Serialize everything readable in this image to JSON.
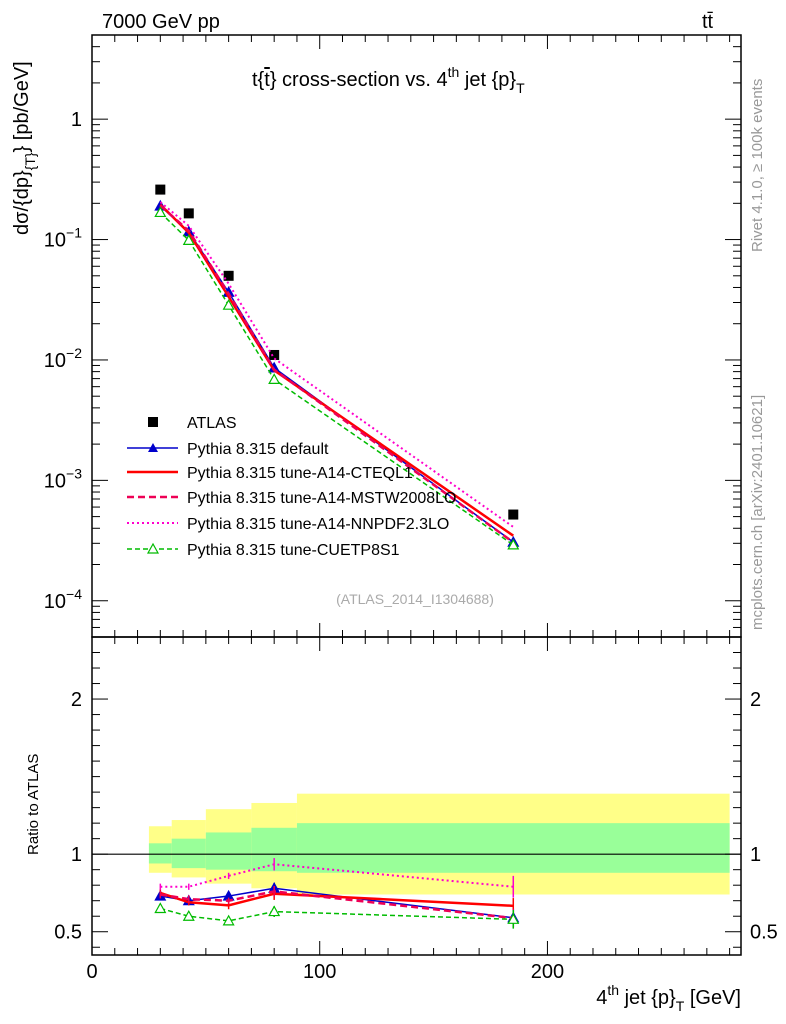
{
  "header": {
    "left": "7000 GeV pp",
    "right_main": "tt",
    "right_bar": "̄"
  },
  "main_title": {
    "pre": "t{",
    "tbar": "t",
    "mid": "} cross-section vs. 4",
    "sup": "th",
    "post": " jet {p}",
    "sub": "T"
  },
  "side_labels": {
    "rivet": "Rivet 4.1.0, ≥ 100k events",
    "mcplots": "mcplots.cern.ch [arXiv:2401.10621]"
  },
  "y_label_top": {
    "main": "dσ/{dp}",
    "sub": "{T}",
    "post": "} [pb/GeV]"
  },
  "y_label_bottom": "Ratio to ATLAS",
  "x_label": {
    "pre": "4",
    "sup": "th",
    "mid": " jet {p}",
    "sub": "T",
    "post": " [GeV]"
  },
  "watermark": "(ATLAS_2014_I1304688)",
  "legend": {
    "atlas": "ATLAS",
    "default": "Pythia 8.315 default",
    "cteq": "Pythia 8.315 tune-A14-CTEQL1",
    "mstw": "Pythia 8.315 tune-A14-MSTW2008LO",
    "nnpdf": "Pythia 8.315 tune-A14-NNPDF2.3LO",
    "cuetp": "Pythia 8.315 tune-CUETP8S1"
  },
  "colors": {
    "atlas": "#000000",
    "default": "#0000cc",
    "cteq": "#ff0000",
    "mstw": "#ee0055",
    "nnpdf": "#ff00cc",
    "cuetp": "#00bb00",
    "band_outer": "#ffff88",
    "band_inner": "#99ff99"
  },
  "chart_data": {
    "type": "line",
    "title": "t{t̄} cross-section vs. 4th jet {p}_T",
    "xlabel": "4th jet {p}_T [GeV]",
    "ylabel_top": "dσ/{dp}_{T}} [pb/GeV]",
    "ylabel_bottom": "Ratio to ATLAS",
    "xlim": [
      0,
      285
    ],
    "ylim_top": [
      5e-05,
      5
    ],
    "ylim_bottom": [
      0.35,
      2.4
    ],
    "x_ticks": [
      {
        "value": 0,
        "label": "0"
      },
      {
        "value": 100,
        "label": "100"
      },
      {
        "value": 200,
        "label": "200"
      }
    ],
    "y_ticks_top": [
      {
        "value": 1,
        "label": "1",
        "exp": ""
      },
      {
        "value": 0.1,
        "label": "10",
        "exp": "−1"
      },
      {
        "value": 0.01,
        "label": "10",
        "exp": "−2"
      },
      {
        "value": 0.001,
        "label": "10",
        "exp": "−3"
      },
      {
        "value": 0.0001,
        "label": "10",
        "exp": "−4"
      }
    ],
    "y_ticks_bottom": [
      {
        "value": 0.5,
        "label": "0.5"
      },
      {
        "value": 1,
        "label": "1"
      },
      {
        "value": 2,
        "label": "2"
      }
    ],
    "bins": [
      {
        "lo": 25,
        "hi": 35
      },
      {
        "lo": 35,
        "hi": 50
      },
      {
        "lo": 50,
        "hi": 70
      },
      {
        "lo": 70,
        "hi": 90
      },
      {
        "lo": 90,
        "hi": 280
      }
    ],
    "band": {
      "outer_lo": [
        0.88,
        0.85,
        0.81,
        0.78,
        0.74
      ],
      "outer_hi": [
        1.18,
        1.22,
        1.29,
        1.33,
        1.39
      ],
      "inner_lo": [
        0.94,
        0.91,
        0.9,
        0.89,
        0.88
      ],
      "inner_hi": [
        1.07,
        1.1,
        1.14,
        1.17,
        1.2
      ]
    },
    "x": [
      30,
      42.5,
      60,
      80,
      185
    ],
    "series": [
      {
        "key": "atlas",
        "name": "ATLAS",
        "values": [
          0.26,
          0.165,
          0.05,
          0.011,
          0.00052
        ],
        "ratio": [
          1,
          1,
          1,
          1,
          1
        ]
      },
      {
        "key": "default",
        "name": "Pythia 8.315 default",
        "values": [
          0.19,
          0.116,
          0.0365,
          0.0086,
          0.000307
        ],
        "ratio": [
          0.73,
          0.7,
          0.73,
          0.78,
          0.59
        ],
        "ratio_err": [
          0.025,
          0.025,
          0.02,
          0.035,
          0.06
        ]
      },
      {
        "key": "cteq",
        "name": "Pythia 8.315 tune-A14-CTEQL1",
        "values": [
          0.195,
          0.114,
          0.0335,
          0.0082,
          0.000347
        ],
        "ratio": [
          0.75,
          0.69,
          0.67,
          0.745,
          0.667
        ],
        "ratio_err": [
          0.025,
          0.02,
          0.025,
          0.04,
          0.05
        ]
      },
      {
        "key": "mstw",
        "name": "Pythia 8.315 tune-A14-MSTW2008LO",
        "values": [
          0.192,
          0.118,
          0.0355,
          0.0083,
          0.000306
        ],
        "ratio": [
          0.74,
          0.71,
          0.7,
          0.76,
          0.588
        ],
        "ratio_err": [
          0.025,
          0.025,
          0.02,
          0.035,
          0.06
        ]
      },
      {
        "key": "nnpdf",
        "name": "Pythia 8.315 tune-A14-NNPDF2.3LO",
        "values": [
          0.205,
          0.13,
          0.043,
          0.0103,
          0.00041
        ],
        "ratio": [
          0.79,
          0.79,
          0.86,
          0.935,
          0.79
        ],
        "ratio_err": [
          0.02,
          0.02,
          0.02,
          0.04,
          0.07
        ]
      },
      {
        "key": "cuetp",
        "name": "Pythia 8.315 tune-CUETP8S1",
        "values": [
          0.168,
          0.0985,
          0.0285,
          0.0069,
          0.000291
        ],
        "ratio": [
          0.65,
          0.6,
          0.57,
          0.63,
          0.58
        ],
        "ratio_err": [
          0.015,
          0.015,
          0.015,
          0.035,
          0.06
        ]
      }
    ]
  }
}
